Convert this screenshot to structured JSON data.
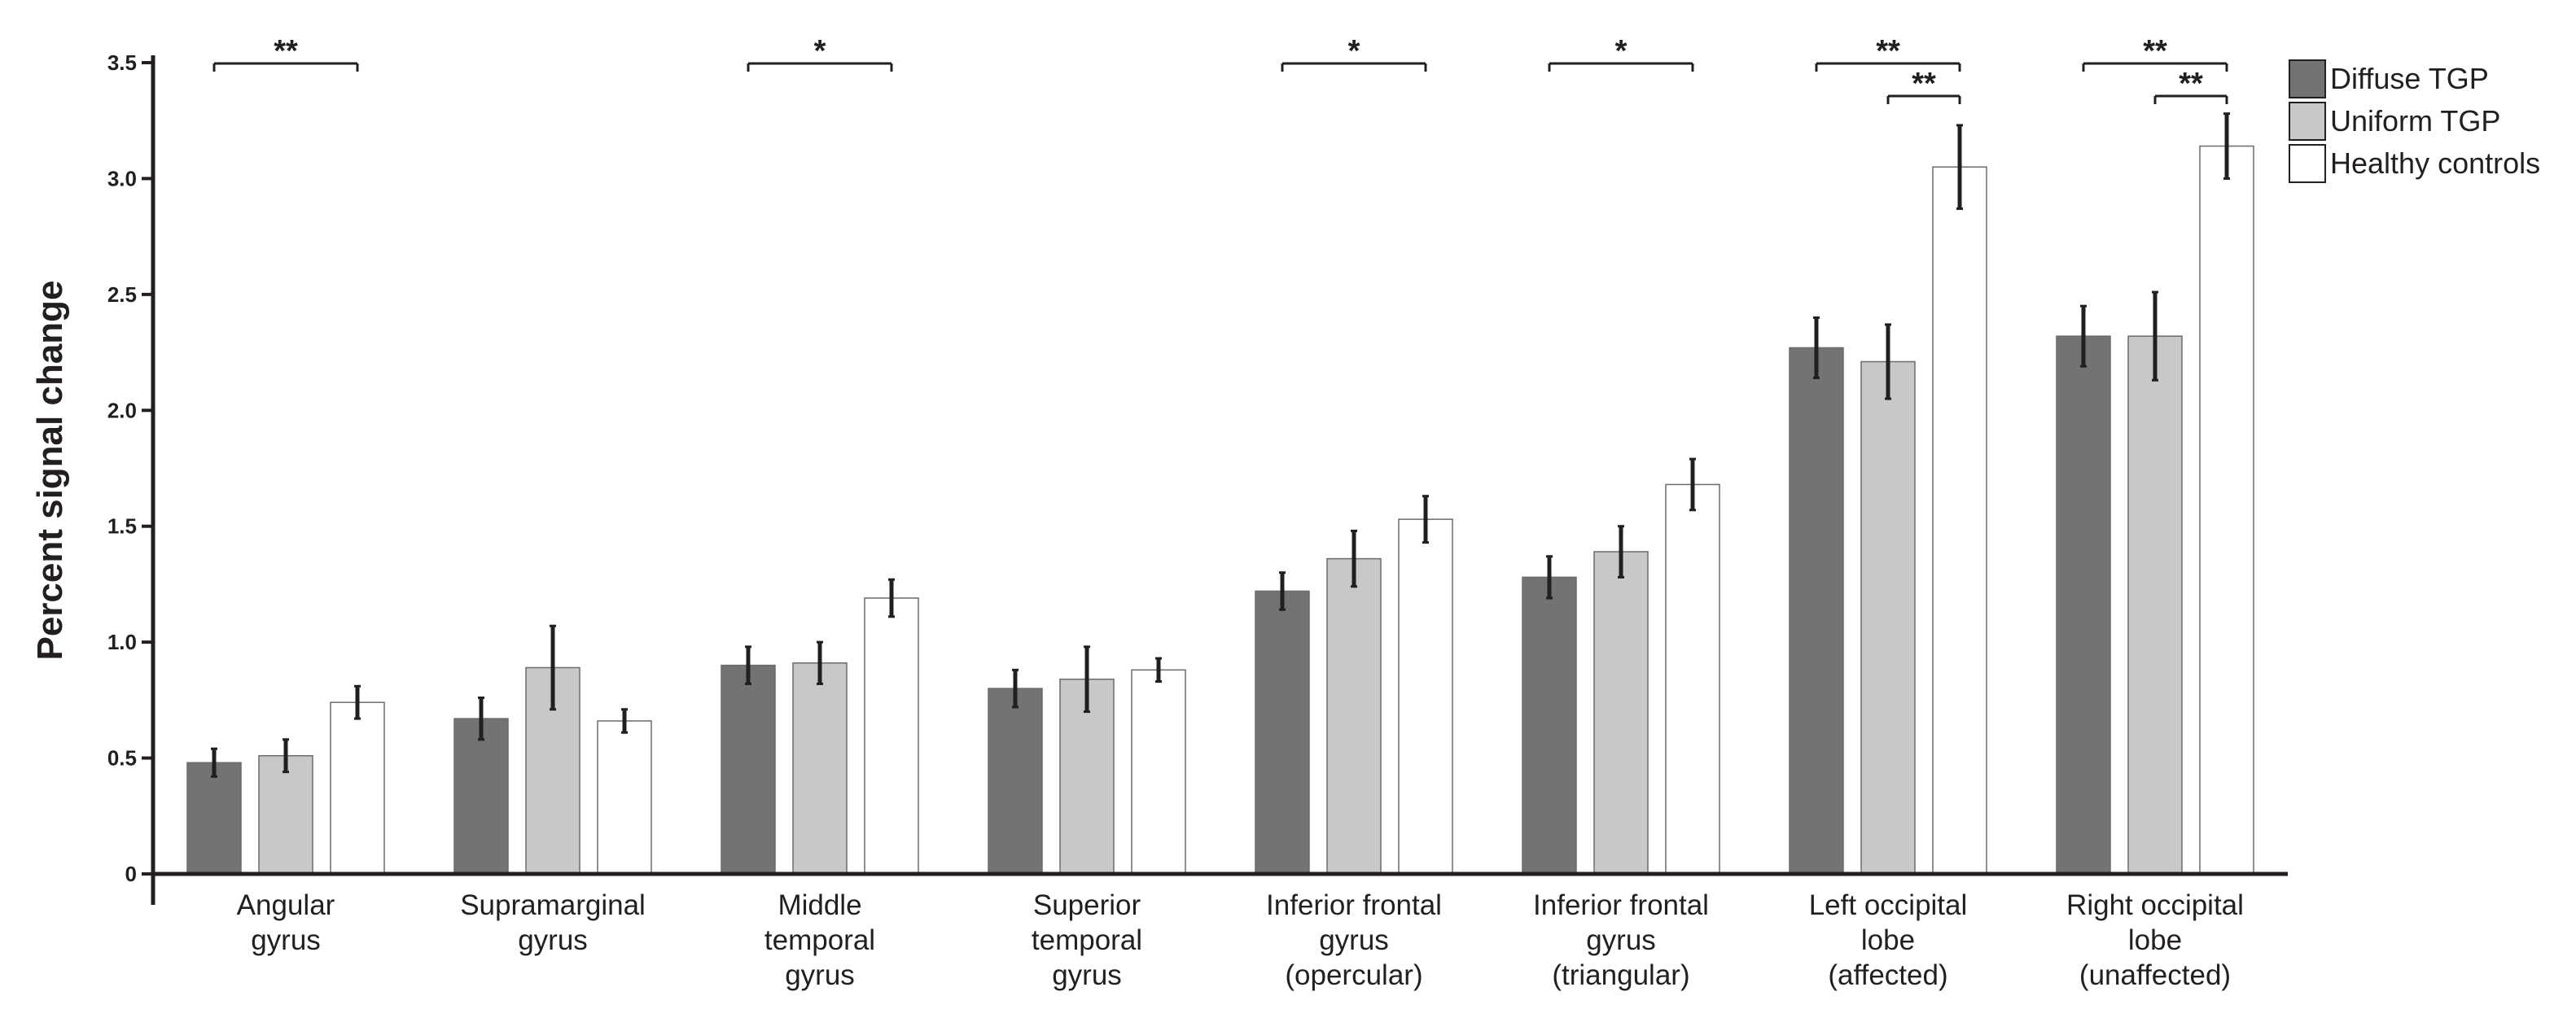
{
  "chart_data": {
    "type": "bar",
    "title": "",
    "xlabel": "",
    "ylabel": "Percent signal change",
    "ylim": [
      0,
      3.5
    ],
    "yticks": [
      {
        "value": 0,
        "label": "0"
      },
      {
        "value": 0.5,
        "label": "0.5"
      },
      {
        "value": 1.0,
        "label": "1.0"
      },
      {
        "value": 1.5,
        "label": "1.5"
      },
      {
        "value": 2.0,
        "label": "2.0"
      },
      {
        "value": 2.5,
        "label": "2.5"
      },
      {
        "value": 3.0,
        "label": "3.0"
      },
      {
        "value": 3.5,
        "label": "3.5"
      }
    ],
    "grid": false,
    "legend_position": "top-right",
    "categories": [
      [
        "Angular",
        "gyrus"
      ],
      [
        "Supramarginal",
        "gyrus"
      ],
      [
        "Middle",
        "temporal",
        "gyrus"
      ],
      [
        "Superior",
        "temporal",
        "gyrus"
      ],
      [
        "Inferior frontal",
        "gyrus",
        "(opercular)"
      ],
      [
        "Inferior frontal",
        "gyrus",
        "(triangular)"
      ],
      [
        "Left occipital",
        "lobe",
        "(affected)"
      ],
      [
        "Right occipital",
        "lobe",
        "(unaffected)"
      ]
    ],
    "series": [
      {
        "name": "Diffuse TGP",
        "color": "#737373",
        "values": [
          0.48,
          0.67,
          0.9,
          0.8,
          1.22,
          1.28,
          2.27,
          2.32
        ],
        "errors": [
          0.06,
          0.09,
          0.08,
          0.08,
          0.08,
          0.09,
          0.13,
          0.13
        ]
      },
      {
        "name": "Uniform TGP",
        "color": "#c7c9c8",
        "values": [
          0.51,
          0.89,
          0.91,
          0.84,
          1.36,
          1.39,
          2.21,
          2.32
        ],
        "errors": [
          0.07,
          0.18,
          0.09,
          0.14,
          0.12,
          0.11,
          0.16,
          0.19
        ]
      },
      {
        "name": "Healthy controls",
        "color": "#ffffff",
        "values": [
          0.74,
          0.66,
          1.19,
          0.88,
          1.53,
          1.68,
          3.05,
          3.14
        ],
        "errors": [
          0.07,
          0.05,
          0.08,
          0.05,
          0.1,
          0.11,
          0.18,
          0.14
        ]
      }
    ],
    "significance": [
      {
        "category": 0,
        "from_series": 0,
        "to_series": 2,
        "label": "**",
        "level": 0
      },
      {
        "category": 2,
        "from_series": 0,
        "to_series": 2,
        "label": "*",
        "level": 0
      },
      {
        "category": 4,
        "from_series": 0,
        "to_series": 2,
        "label": "*",
        "level": 0
      },
      {
        "category": 5,
        "from_series": 0,
        "to_series": 2,
        "label": "*",
        "level": 0
      },
      {
        "category": 6,
        "from_series": 0,
        "to_series": 2,
        "label": "**",
        "level": 0
      },
      {
        "category": 6,
        "from_series": 1,
        "to_series": 2,
        "label": "**",
        "level": 1
      },
      {
        "category": 7,
        "from_series": 0,
        "to_series": 2,
        "label": "**",
        "level": 0
      },
      {
        "category": 7,
        "from_series": 1,
        "to_series": 2,
        "label": "**",
        "level": 1
      }
    ]
  }
}
